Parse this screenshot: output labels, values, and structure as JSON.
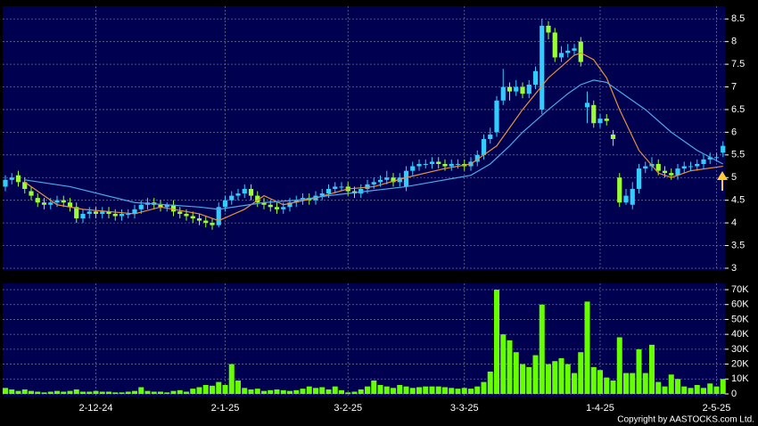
{
  "chart_data": [
    {
      "type": "candlestick",
      "categories": [
        null,
        null,
        null,
        null,
        null,
        null,
        null,
        null,
        null,
        null,
        null,
        null,
        null,
        null,
        "2-12-24",
        null,
        null,
        null,
        null,
        null,
        null,
        null,
        null,
        null,
        null,
        null,
        null,
        null,
        null,
        null,
        null,
        null,
        null,
        null,
        "2-1-25",
        null,
        null,
        null,
        null,
        null,
        null,
        null,
        null,
        null,
        null,
        null,
        null,
        null,
        null,
        null,
        null,
        null,
        null,
        "3-2-25",
        null,
        null,
        null,
        null,
        null,
        null,
        null,
        null,
        null,
        null,
        null,
        null,
        null,
        null,
        null,
        null,
        null,
        "3-3-25",
        null,
        null,
        null,
        null,
        null,
        null,
        null,
        null,
        null,
        null,
        null,
        null,
        null,
        null,
        null,
        null,
        null,
        null,
        null,
        null,
        "1-4-25",
        null,
        null,
        null,
        null,
        null,
        null,
        null,
        null,
        null,
        null,
        null,
        null,
        null,
        null,
        null,
        null,
        null,
        "2-5-25",
        null
      ],
      "open": [
        4.8,
        4.95,
        5.05,
        4.9,
        4.7,
        4.55,
        4.45,
        4.4,
        4.45,
        4.5,
        4.45,
        4.35,
        4.1,
        4.2,
        4.25,
        4.2,
        4.25,
        4.2,
        4.15,
        4.2,
        4.2,
        4.3,
        4.4,
        4.45,
        4.4,
        4.35,
        4.4,
        4.25,
        4.2,
        4.15,
        4.1,
        4.05,
        4.0,
        3.95,
        4.35,
        4.5,
        4.6,
        4.65,
        4.75,
        4.6,
        4.45,
        4.4,
        4.35,
        4.3,
        4.35,
        4.45,
        4.5,
        4.55,
        4.5,
        4.6,
        4.65,
        4.75,
        4.8,
        4.8,
        4.7,
        4.65,
        4.75,
        4.85,
        4.9,
        4.95,
        5.0,
        4.9,
        4.8,
        5.15,
        5.25,
        5.3,
        5.3,
        5.35,
        5.3,
        5.25,
        5.3,
        5.3,
        5.25,
        5.35,
        5.5,
        5.85,
        6.0,
        6.7,
        7.0,
        6.9,
        7.0,
        6.85,
        7.05,
        6.5,
        8.35,
        8.2,
        7.65,
        7.75,
        7.8,
        8.0,
        6.55,
        6.6,
        6.2,
        6.3,
        5.95,
        5.0,
        4.45,
        4.4,
        4.75,
        5.2,
        5.25,
        5.3,
        5.15,
        5.1,
        5.05,
        5.2,
        5.25,
        5.25,
        5.3,
        5.4,
        5.45,
        5.55
      ],
      "high": [
        5.05,
        5.1,
        5.15,
        5.0,
        4.8,
        4.65,
        4.55,
        4.55,
        4.6,
        4.6,
        4.55,
        4.45,
        4.3,
        4.35,
        4.35,
        4.35,
        4.35,
        4.3,
        4.3,
        4.3,
        4.4,
        4.5,
        4.55,
        4.55,
        4.5,
        4.45,
        4.5,
        4.35,
        4.3,
        4.25,
        4.2,
        4.15,
        4.1,
        4.45,
        4.6,
        4.7,
        4.75,
        4.85,
        4.85,
        4.7,
        4.55,
        4.5,
        4.45,
        4.45,
        4.55,
        4.6,
        4.65,
        4.65,
        4.7,
        4.75,
        4.85,
        4.9,
        4.9,
        4.9,
        4.8,
        4.85,
        4.95,
        5.0,
        5.05,
        5.15,
        5.1,
        5.1,
        5.25,
        5.35,
        5.4,
        5.4,
        5.45,
        5.45,
        5.4,
        5.4,
        5.4,
        5.4,
        5.45,
        5.6,
        5.95,
        6.1,
        6.8,
        7.4,
        7.1,
        7.15,
        7.1,
        7.15,
        7.45,
        8.5,
        8.45,
        8.3,
        7.9,
        7.95,
        7.95,
        8.1,
        6.9,
        6.7,
        6.4,
        6.4,
        6.05,
        5.1,
        4.75,
        4.9,
        5.3,
        5.35,
        5.45,
        5.4,
        5.25,
        5.2,
        5.3,
        5.35,
        5.35,
        5.4,
        5.5,
        5.55,
        5.55,
        5.8
      ],
      "low": [
        4.7,
        4.85,
        4.8,
        4.65,
        4.5,
        4.35,
        4.3,
        4.3,
        4.35,
        4.35,
        4.25,
        4.0,
        4.0,
        4.1,
        4.1,
        4.1,
        4.1,
        4.05,
        4.05,
        4.1,
        4.1,
        4.2,
        4.3,
        4.3,
        4.25,
        4.25,
        4.15,
        4.1,
        4.05,
        4.0,
        3.95,
        3.9,
        3.85,
        3.9,
        4.25,
        4.4,
        4.5,
        4.55,
        4.5,
        4.35,
        4.3,
        4.25,
        4.2,
        4.2,
        4.25,
        4.35,
        4.4,
        4.4,
        4.4,
        4.5,
        4.55,
        4.65,
        4.7,
        4.6,
        4.55,
        4.55,
        4.65,
        4.75,
        4.8,
        4.85,
        4.8,
        4.8,
        4.7,
        5.05,
        5.15,
        5.2,
        5.2,
        5.2,
        5.15,
        5.15,
        5.2,
        5.15,
        5.15,
        5.25,
        5.4,
        5.75,
        5.9,
        6.6,
        6.7,
        6.8,
        6.75,
        6.75,
        6.95,
        6.4,
        8.05,
        7.55,
        7.55,
        7.65,
        7.7,
        7.45,
        6.2,
        6.1,
        6.1,
        6.15,
        5.7,
        4.35,
        4.4,
        4.3,
        4.65,
        5.1,
        5.15,
        5.05,
        5.0,
        4.95,
        4.95,
        5.1,
        5.15,
        5.15,
        5.2,
        5.3,
        5.35,
        5.45
      ],
      "close": [
        4.95,
        5.0,
        4.9,
        4.75,
        4.6,
        4.45,
        4.4,
        4.45,
        4.5,
        4.45,
        4.35,
        4.1,
        4.2,
        4.25,
        4.2,
        4.25,
        4.2,
        4.15,
        4.2,
        4.2,
        4.3,
        4.4,
        4.45,
        4.4,
        4.35,
        4.4,
        4.25,
        4.2,
        4.15,
        4.1,
        4.05,
        4.0,
        3.95,
        4.35,
        4.5,
        4.6,
        4.65,
        4.75,
        4.6,
        4.45,
        4.4,
        4.35,
        4.3,
        4.35,
        4.45,
        4.5,
        4.55,
        4.5,
        4.6,
        4.65,
        4.75,
        4.8,
        4.8,
        4.7,
        4.65,
        4.75,
        4.85,
        4.9,
        4.95,
        5.0,
        4.9,
        5.0,
        5.15,
        5.25,
        5.3,
        5.3,
        5.35,
        5.3,
        5.25,
        5.3,
        5.3,
        5.25,
        5.35,
        5.5,
        5.85,
        5.95,
        6.7,
        7.0,
        6.9,
        7.0,
        6.85,
        7.05,
        7.35,
        8.35,
        8.2,
        7.65,
        7.75,
        7.8,
        7.85,
        7.55,
        6.65,
        6.2,
        6.3,
        6.25,
        5.85,
        4.45,
        4.6,
        4.75,
        5.2,
        5.25,
        5.3,
        5.15,
        5.1,
        5.05,
        5.2,
        5.25,
        5.25,
        5.3,
        5.4,
        5.45,
        5.45,
        5.7
      ],
      "up_color": "#33ccff",
      "down_color": "#99ff33",
      "series": [
        {
          "color": "#e8913a",
          "x": [
            3,
            8,
            12,
            20,
            24,
            30,
            33,
            37,
            40,
            43,
            48,
            53,
            57,
            62,
            68,
            72,
            76,
            80,
            84,
            88,
            89,
            91,
            93,
            95,
            98,
            101,
            103,
            106,
            111
          ],
          "values": [
            4.9,
            4.4,
            4.3,
            4.2,
            4.35,
            4.2,
            4.05,
            4.3,
            4.6,
            4.4,
            4.55,
            4.75,
            4.8,
            5.0,
            5.2,
            5.3,
            5.7,
            6.5,
            7.2,
            7.7,
            7.75,
            7.6,
            7.2,
            6.5,
            5.6,
            5.1,
            5.0,
            5.15,
            5.25
          ]
        },
        {
          "color": "#4fa8e8",
          "x": [
            3,
            10,
            20,
            30,
            33,
            40,
            45,
            50,
            56,
            62,
            66,
            72,
            75,
            78,
            80,
            84,
            87,
            89,
            91,
            93,
            96,
            99,
            103,
            107,
            111
          ],
          "values": [
            4.95,
            4.8,
            4.45,
            4.35,
            4.3,
            4.45,
            4.5,
            4.6,
            4.7,
            4.8,
            4.9,
            5.05,
            5.3,
            5.7,
            6.0,
            6.5,
            6.85,
            7.05,
            7.15,
            7.1,
            6.8,
            6.5,
            6.0,
            5.6,
            5.3
          ]
        }
      ],
      "ylim": [
        2.96,
        8.78
      ],
      "yticks": [
        3,
        3.5,
        4,
        4.5,
        5,
        5.5,
        6,
        6.5,
        7,
        7.5,
        8,
        8.5
      ],
      "grid": true
    },
    {
      "type": "bar",
      "color": "#66ff00",
      "values": [
        4000,
        3000,
        2000,
        3000,
        2000,
        1500,
        1000,
        1500,
        2000,
        1500,
        2000,
        3000,
        1500,
        1500,
        2000,
        1500,
        1500,
        1000,
        1000,
        1500,
        2000,
        4500,
        2000,
        1500,
        1500,
        1000,
        2000,
        2500,
        1500,
        3500,
        4500,
        6000,
        5500,
        8000,
        6000,
        20000,
        9000,
        4000,
        3000,
        3500,
        2000,
        2500,
        3000,
        2500,
        2000,
        2500,
        3500,
        5000,
        4000,
        4500,
        3000,
        5000,
        2500,
        1000,
        1500,
        3000,
        5000,
        9000,
        6000,
        5000,
        4000,
        6000,
        5000,
        4000,
        4500,
        5000,
        5000,
        5000,
        4500,
        4000,
        3500,
        4000,
        3500,
        5000,
        8000,
        15000,
        70000,
        40000,
        36000,
        28000,
        20000,
        18000,
        26000,
        60000,
        20000,
        22000,
        24000,
        20000,
        14000,
        28000,
        62000,
        18000,
        16000,
        11000,
        9000,
        38000,
        14000,
        14000,
        30000,
        14000,
        33000,
        8000,
        5000,
        13000,
        10000,
        5000,
        4000,
        6000,
        4000,
        7000,
        5000,
        10000
      ],
      "ylim": [
        -1800,
        74200
      ],
      "yticks": [
        0,
        {
          "value": 10000,
          "label": "10K"
        },
        {
          "value": 20000,
          "label": "20K"
        },
        {
          "value": 30000,
          "label": "30K"
        },
        {
          "value": 40000,
          "label": "40K"
        },
        {
          "value": 50000,
          "label": "50K"
        },
        {
          "value": 60000,
          "label": "60K"
        },
        {
          "value": 70000,
          "label": "70K"
        }
      ],
      "grid": true
    }
  ],
  "footer": "Copyright by AASTOCKS.com Ltd."
}
